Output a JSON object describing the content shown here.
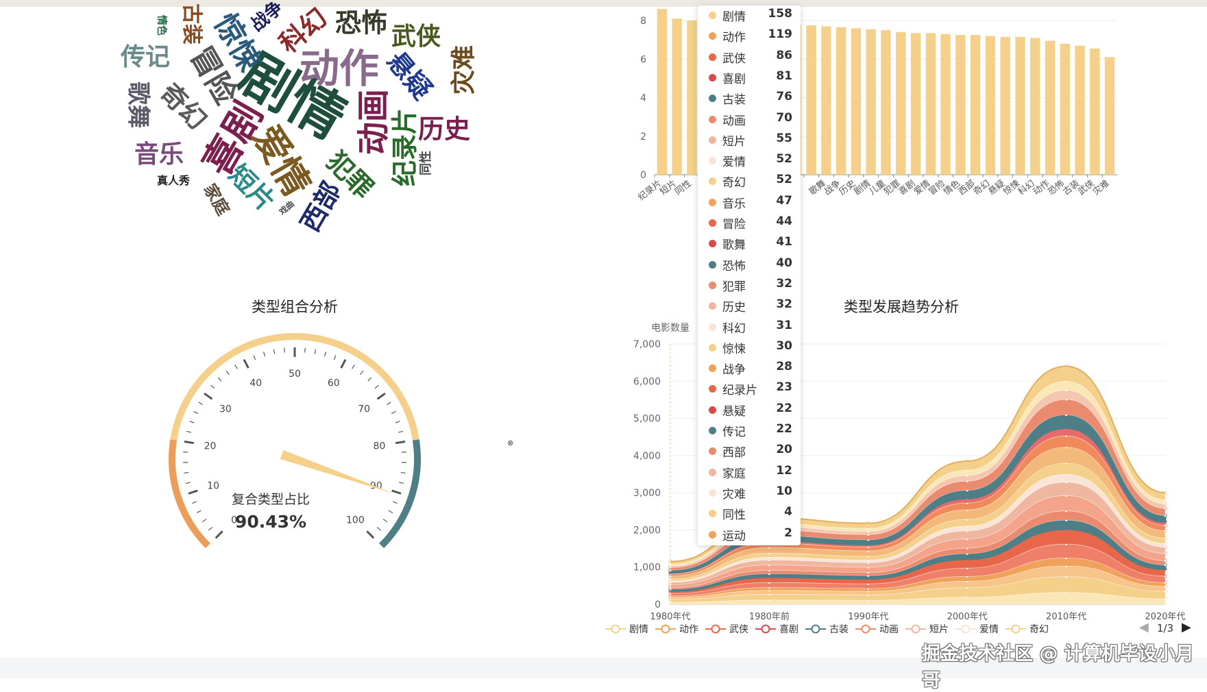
{
  "wordcloud": {
    "words": [
      {
        "text": "剧情",
        "color": "#1f4e3d",
        "size": 80,
        "x": 430,
        "y": 135,
        "rot": 30
      },
      {
        "text": "动作",
        "color": "#8a6a8a",
        "size": 58,
        "x": 495,
        "y": 95,
        "rot": 0
      },
      {
        "text": "喜剧",
        "color": "#7a1f4e",
        "size": 56,
        "x": 336,
        "y": 200,
        "rot": -60
      },
      {
        "text": "爱情",
        "color": "#7a5a20",
        "size": 54,
        "x": 415,
        "y": 232,
        "rot": 60
      },
      {
        "text": "动画",
        "color": "#7a1f4e",
        "size": 48,
        "x": 540,
        "y": 178,
        "rot": -90
      },
      {
        "text": "冒险",
        "color": "#555",
        "size": 44,
        "x": 315,
        "y": 108,
        "rot": 60
      },
      {
        "text": "惊悚",
        "color": "#2a5a7a",
        "size": 44,
        "x": 350,
        "y": 60,
        "rot": 60
      },
      {
        "text": "恐怖",
        "color": "#3a3a2a",
        "size": 38,
        "x": 527,
        "y": 30,
        "rot": 0
      },
      {
        "text": "科幻",
        "color": "#8a2a2a",
        "size": 38,
        "x": 440,
        "y": 42,
        "rot": -40
      },
      {
        "text": "悬疑",
        "color": "#1f3a8a",
        "size": 38,
        "x": 600,
        "y": 108,
        "rot": 50
      },
      {
        "text": "武侠",
        "color": "#4a5a1f",
        "size": 36,
        "x": 607,
        "y": 50,
        "rot": 0
      },
      {
        "text": "灾难",
        "color": "#6a4a1f",
        "size": 36,
        "x": 673,
        "y": 102,
        "rot": -90
      },
      {
        "text": "历史",
        "color": "#7a1f4e",
        "size": 38,
        "x": 648,
        "y": 185,
        "rot": 0
      },
      {
        "text": "纪录片",
        "color": "#2a6a2a",
        "size": 38,
        "x": 587,
        "y": 215,
        "rot": -90
      },
      {
        "text": "犯罪",
        "color": "#2a6a2a",
        "size": 38,
        "x": 513,
        "y": 253,
        "rot": 45
      },
      {
        "text": "西部",
        "color": "#1f2a6a",
        "size": 38,
        "x": 465,
        "y": 300,
        "rot": -60
      },
      {
        "text": "短片",
        "color": "#2a8a8a",
        "size": 38,
        "x": 370,
        "y": 272,
        "rot": 45
      },
      {
        "text": "奇幻",
        "color": "#5a5a5a",
        "size": 38,
        "x": 270,
        "y": 153,
        "rot": 45
      },
      {
        "text": "传记",
        "color": "#6a8a8a",
        "size": 36,
        "x": 212,
        "y": 80,
        "rot": 0
      },
      {
        "text": "歌舞",
        "color": "#5a5a6a",
        "size": 34,
        "x": 205,
        "y": 153,
        "rot": 90
      },
      {
        "text": "音乐",
        "color": "#7a4a7a",
        "size": 36,
        "x": 232,
        "y": 222,
        "rot": 0
      },
      {
        "text": "家庭",
        "color": "#5a4a3a",
        "size": 24,
        "x": 318,
        "y": 290,
        "rot": 60
      },
      {
        "text": "真人秀",
        "color": "#222",
        "size": 16,
        "x": 253,
        "y": 262,
        "rot": 0
      },
      {
        "text": "古装",
        "color": "#8a4a1f",
        "size": 30,
        "x": 283,
        "y": 35,
        "rot": 90
      },
      {
        "text": "情色",
        "color": "#2a6a4a",
        "size": 15,
        "x": 237,
        "y": 37,
        "rot": 90
      },
      {
        "text": "战争",
        "color": "#1f1f5a",
        "size": 26,
        "x": 388,
        "y": 22,
        "rot": -40
      },
      {
        "text": "同性",
        "color": "#4a4a4a",
        "size": 18,
        "x": 620,
        "y": 238,
        "rot": -90
      },
      {
        "text": "戏曲",
        "color": "#4a4a4a",
        "size": 12,
        "x": 418,
        "y": 303,
        "rot": -40
      }
    ]
  },
  "bar_chart": {
    "y_ticks": [
      "0",
      "2",
      "4",
      "6",
      "8"
    ],
    "categories": [
      "纪录片",
      "短片",
      "同性",
      "",
      "",
      "",
      "",
      "",
      "",
      "",
      "",
      "歌舞",
      "战争",
      "历史",
      "剧情",
      "儿童",
      "犯罪",
      "喜剧",
      "爱情",
      "冒险",
      "情色",
      "西部",
      "奇幻",
      "悬疑",
      "惊悚",
      "科幻",
      "动作",
      "恐怖",
      "古装",
      "武侠",
      "灾难"
    ],
    "values": [
      8.6,
      8.1,
      8.0,
      8.0,
      7.9,
      7.9,
      7.9,
      7.85,
      7.8,
      7.8,
      7.75,
      7.7,
      7.65,
      7.6,
      7.55,
      7.5,
      7.4,
      7.35,
      7.35,
      7.3,
      7.25,
      7.25,
      7.2,
      7.15,
      7.15,
      7.1,
      6.95,
      6.8,
      6.7,
      6.55,
      6.1
    ],
    "color": "#f5d08a"
  },
  "tooltip": {
    "items": [
      {
        "name": "剧情",
        "value": "158",
        "color": "#f5d08a"
      },
      {
        "name": "动作",
        "value": "119",
        "color": "#f0a15a"
      },
      {
        "name": "武侠",
        "value": "86",
        "color": "#e8674a"
      },
      {
        "name": "喜剧",
        "value": "81",
        "color": "#d94a4a"
      },
      {
        "name": "古装",
        "value": "76",
        "color": "#4f7f86"
      },
      {
        "name": "动画",
        "value": "70",
        "color": "#ea8a6e"
      },
      {
        "name": "短片",
        "value": "55",
        "color": "#f0b7a0"
      },
      {
        "name": "爱情",
        "value": "52",
        "color": "#f9e4d6"
      },
      {
        "name": "奇幻",
        "value": "52",
        "color": "#f5d08a"
      },
      {
        "name": "音乐",
        "value": "47",
        "color": "#f0a15a"
      },
      {
        "name": "冒险",
        "value": "44",
        "color": "#e8674a"
      },
      {
        "name": "歌舞",
        "value": "41",
        "color": "#d94a4a"
      },
      {
        "name": "恐怖",
        "value": "40",
        "color": "#4f7f86"
      },
      {
        "name": "犯罪",
        "value": "32",
        "color": "#ea8a6e"
      },
      {
        "name": "历史",
        "value": "32",
        "color": "#f0b7a0"
      },
      {
        "name": "科幻",
        "value": "31",
        "color": "#f9e4d6"
      },
      {
        "name": "惊悚",
        "value": "30",
        "color": "#f5d08a"
      },
      {
        "name": "战争",
        "value": "28",
        "color": "#f0a15a"
      },
      {
        "name": "纪录片",
        "value": "23",
        "color": "#e8674a"
      },
      {
        "name": "悬疑",
        "value": "22",
        "color": "#d94a4a"
      },
      {
        "name": "传记",
        "value": "22",
        "color": "#4f7f86"
      },
      {
        "name": "西部",
        "value": "20",
        "color": "#ea8a6e"
      },
      {
        "name": "家庭",
        "value": "12",
        "color": "#f0b7a0"
      },
      {
        "name": "灾难",
        "value": "10",
        "color": "#f9e4d6"
      },
      {
        "name": "同性",
        "value": "4",
        "color": "#f5d08a"
      },
      {
        "name": "运动",
        "value": "2",
        "color": "#f0a15a"
      }
    ]
  },
  "gauge": {
    "title": "类型组合分析",
    "label": "复合类型占比",
    "value_text": "90.43%",
    "value": 90.43,
    "ticks": [
      "0",
      "10",
      "20",
      "30",
      "40",
      "50",
      "60",
      "70",
      "80",
      "90",
      "100"
    ],
    "colors": {
      "low": "#ec9d5a",
      "mid": "#f5d08a",
      "high": "#4f7f86",
      "pointer": "#f5d08a"
    }
  },
  "trend": {
    "title": "类型发展趋势分析",
    "ylabel": "电影数量",
    "y_ticks": [
      "0",
      "1,000",
      "2,000",
      "3,000",
      "4,000",
      "5,000",
      "6,000",
      "7,000"
    ],
    "x_labels": [
      "1980年代",
      "1980年前",
      "1990年代",
      "2000年代",
      "2010年代",
      "2020年代"
    ],
    "series_colors": [
      "#fbe7b6",
      "#f5d08a",
      "#f7c58a",
      "#f0a15a",
      "#f07f6a",
      "#e8674a",
      "#4f7f86",
      "#ea8a6e",
      "#f4a48a",
      "#f0b7a0",
      "#f9e4d6",
      "#f5d08a",
      "#f3b97a",
      "#f08a5a",
      "#e86b6b",
      "#4f7f86",
      "#ea8a6e",
      "#f5c6b0",
      "#fbe7b6",
      "#f5d08a"
    ],
    "totals": [
      1150,
      2320,
      2180,
      3850,
      6400,
      3000
    ]
  },
  "legend": {
    "items": [
      {
        "name": "剧情",
        "color": "#f5d08a"
      },
      {
        "name": "动作",
        "color": "#f0a15a"
      },
      {
        "name": "武侠",
        "color": "#e8674a"
      },
      {
        "name": "喜剧",
        "color": "#d94a4a"
      },
      {
        "name": "古装",
        "color": "#4f7f86"
      },
      {
        "name": "动画",
        "color": "#ea8a6e"
      },
      {
        "name": "短片",
        "color": "#f0b7a0"
      },
      {
        "name": "爱情",
        "color": "#f9e4d6"
      },
      {
        "name": "奇幻",
        "color": "#f5d08a"
      }
    ],
    "page": "1/3"
  },
  "watermark": "掘金技术社区 @ 计算机毕设小月哥"
}
